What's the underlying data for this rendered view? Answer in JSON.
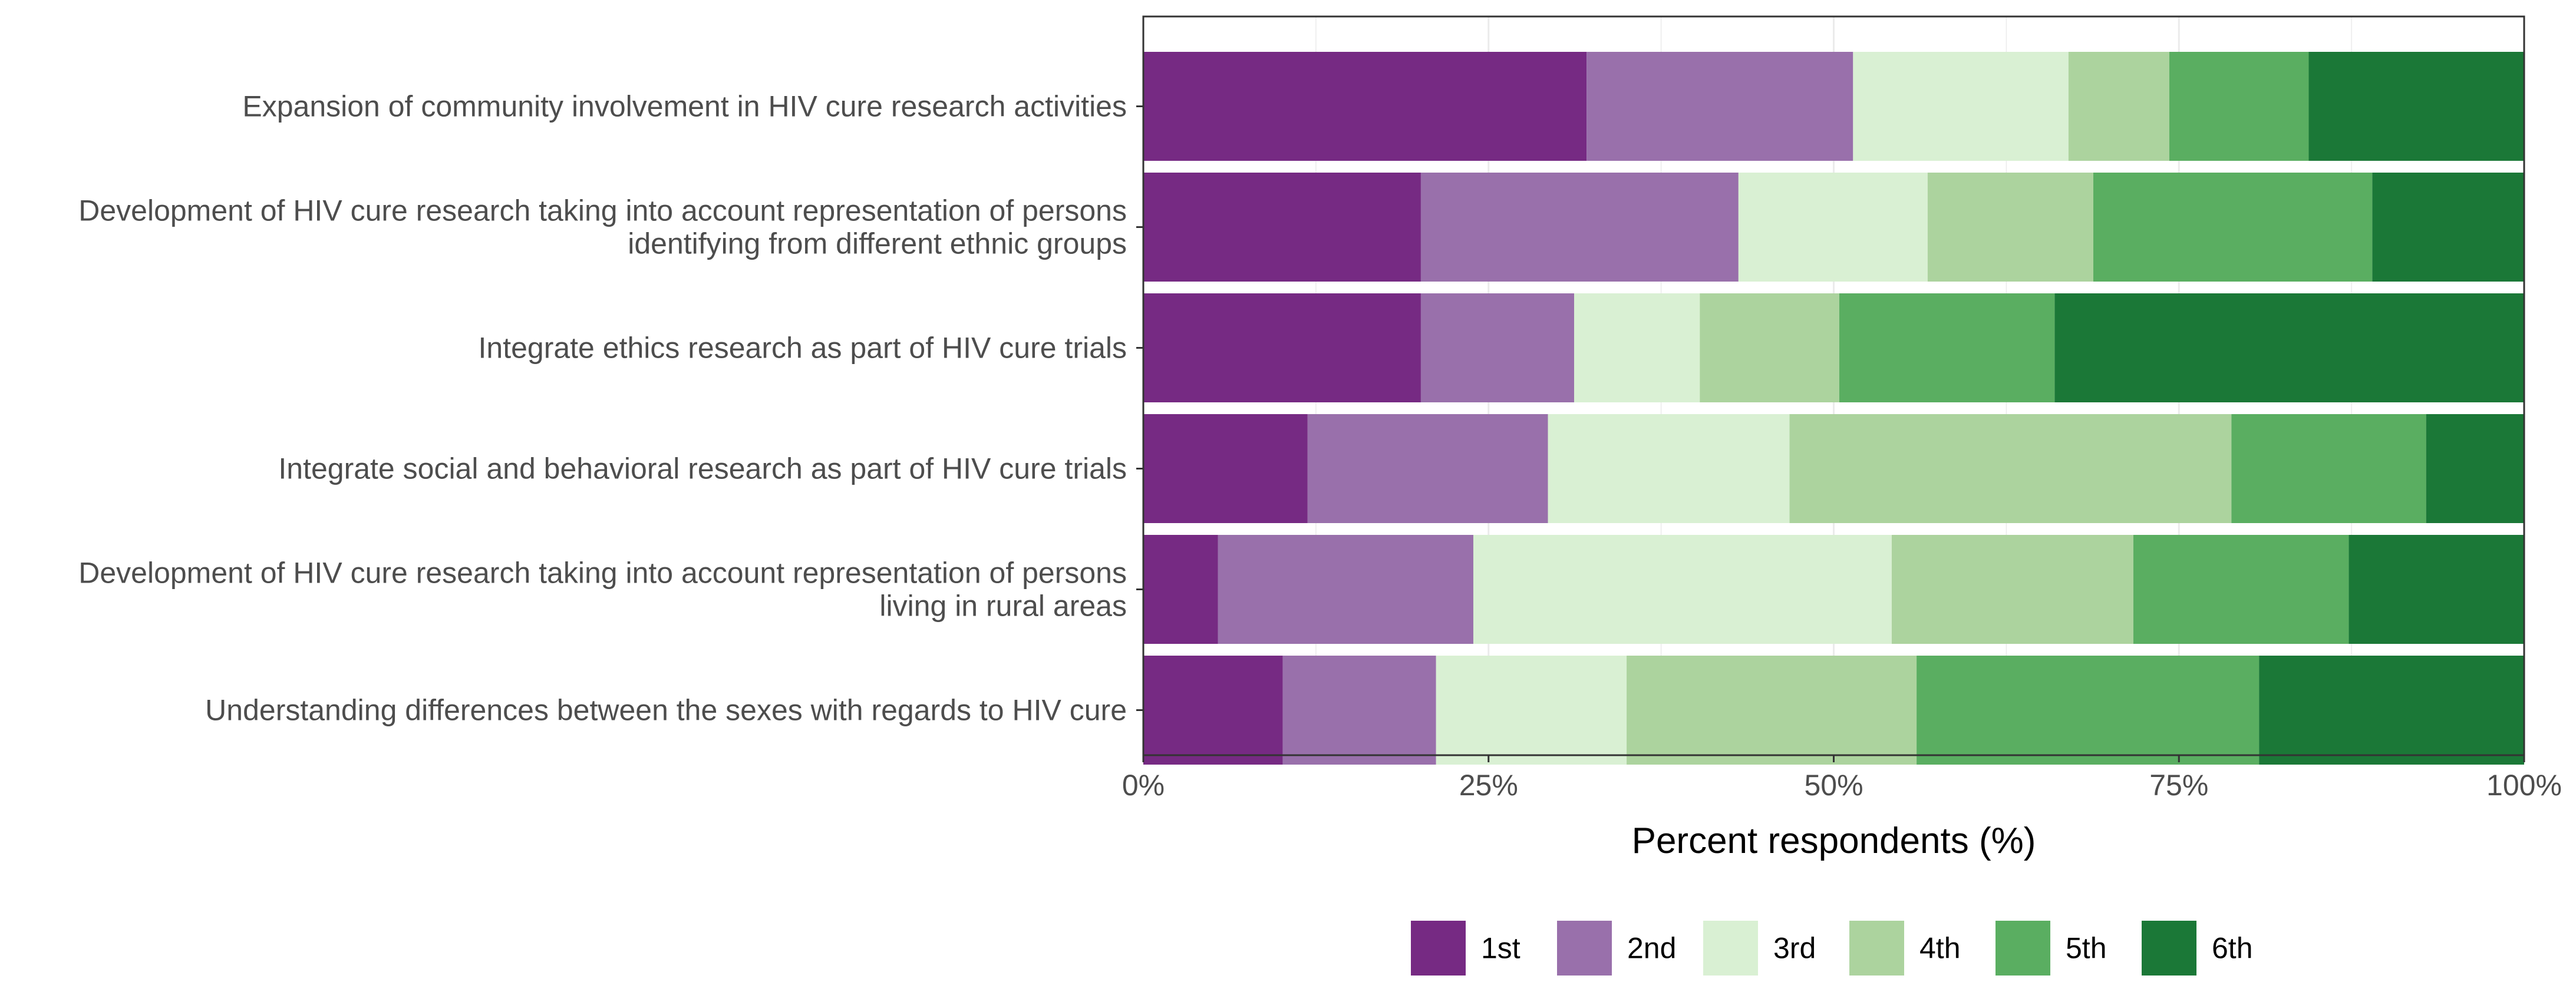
{
  "chart_data": {
    "type": "bar",
    "orientation": "horizontal",
    "stacked": true,
    "xlabel": "Percent respondents (%)",
    "ylabel": "",
    "xlim": [
      0,
      100
    ],
    "x_ticks": [
      0,
      25,
      50,
      75,
      100
    ],
    "x_tick_labels": [
      "0%",
      "25%",
      "50%",
      "75%",
      "100%"
    ],
    "grid": true,
    "legend_position": "bottom",
    "categories": [
      {
        "lines": [
          "Expansion of community involvement in HIV cure research activities"
        ]
      },
      {
        "lines": [
          "Development of HIV cure research taking into account representation of persons",
          "identifying from different ethnic groups"
        ]
      },
      {
        "lines": [
          "Integrate ethics research as part of HIV cure trials"
        ]
      },
      {
        "lines": [
          "Integrate social and behavioral research as part of HIV cure trials"
        ]
      },
      {
        "lines": [
          "Development of HIV cure research taking into account representation of persons",
          "living in rural areas"
        ]
      },
      {
        "lines": [
          "Understanding differences between the sexes with regards to HIV cure"
        ]
      }
    ],
    "series": [
      {
        "name": "1st",
        "color": "#762a83",
        "values": [
          32.1,
          20.1,
          20.1,
          11.9,
          5.4,
          10.1
        ]
      },
      {
        "name": "2nd",
        "color": "#9970ab",
        "values": [
          19.3,
          23.0,
          11.1,
          17.4,
          18.5,
          11.1
        ]
      },
      {
        "name": "3rd",
        "color": "#d9f0d3",
        "values": [
          15.6,
          13.7,
          9.1,
          17.5,
          30.3,
          13.8
        ]
      },
      {
        "name": "4th",
        "color": "#acd39e",
        "values": [
          7.3,
          12.0,
          10.1,
          32.0,
          17.5,
          21.0
        ]
      },
      {
        "name": "5th",
        "color": "#5aae61",
        "values": [
          10.1,
          20.2,
          15.6,
          14.1,
          15.6,
          24.8
        ]
      },
      {
        "name": "6th",
        "color": "#1b7837",
        "values": [
          15.6,
          11.0,
          34.0,
          7.1,
          12.7,
          19.2
        ]
      }
    ]
  }
}
